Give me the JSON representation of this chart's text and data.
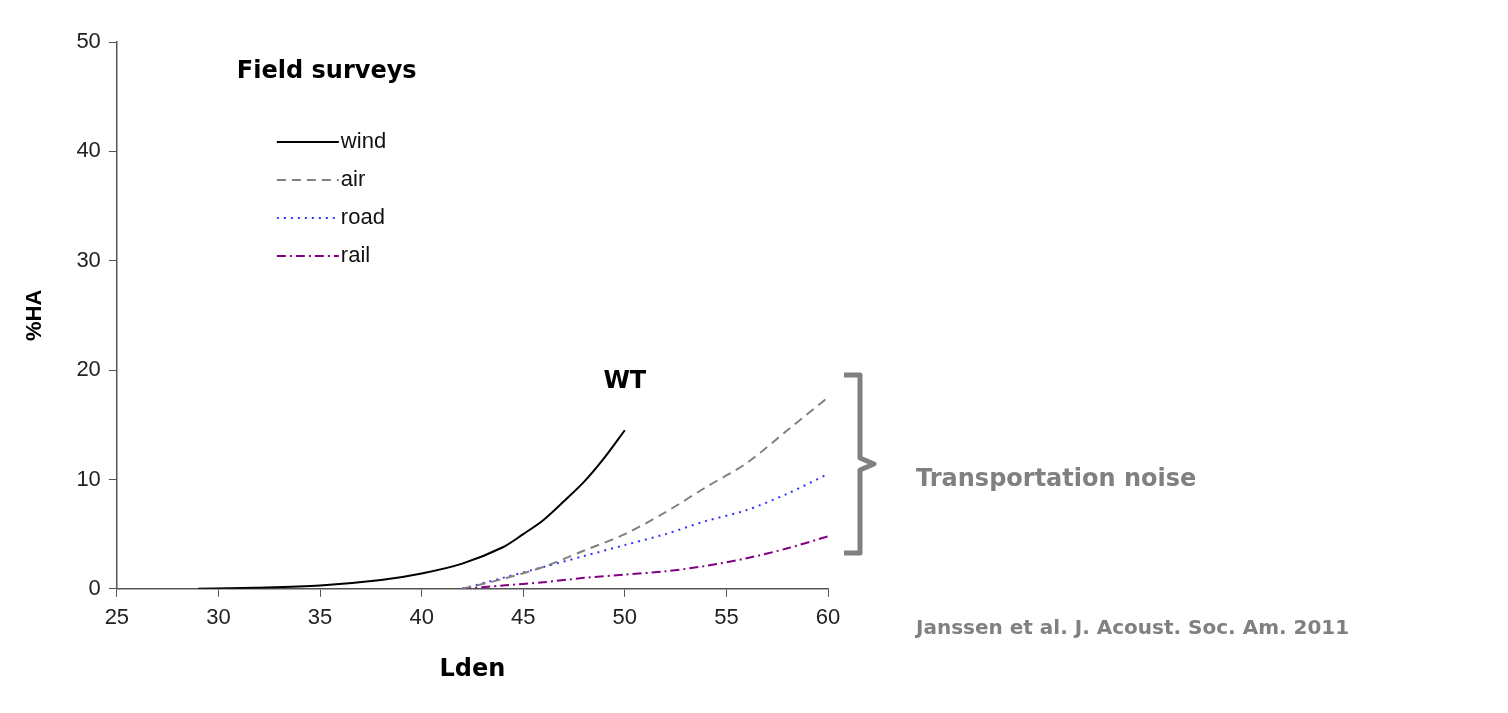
{
  "chart_data": {
    "type": "line",
    "xlabel": "Lden",
    "ylabel": "%HA",
    "xlim": [
      25,
      60
    ],
    "xticks": [
      25,
      30,
      35,
      40,
      45,
      50,
      55,
      60
    ],
    "ylim": [
      0,
      50
    ],
    "yticks": [
      0,
      10,
      20,
      30,
      40,
      50
    ],
    "grid": false,
    "legend": "top left",
    "marker": "none",
    "annotations": [
      "Field surveys",
      {
        "text": "WT",
        "x": 50,
        "y": 14.5
      },
      "Transportation noise",
      "Janssen et al. J. Acoust. Soc. Am. 2011"
    ],
    "series": [
      {
        "name": "wind",
        "color": "#000000",
        "line_style": "solid",
        "x": [
          29,
          32,
          35,
          38,
          40,
          42,
          44,
          45,
          46,
          47,
          48,
          49,
          50
        ],
        "values": [
          0,
          0.1,
          0.3,
          0.8,
          1.4,
          2.3,
          3.8,
          5,
          6.3,
          8,
          9.8,
          12,
          14.5
        ]
      },
      {
        "name": "air",
        "color": "#808080",
        "line_style": "dashed",
        "x": [
          42,
          44,
          46,
          48,
          50,
          52,
          54,
          56,
          58,
          60
        ],
        "values": [
          0,
          0.9,
          2,
          3.5,
          5,
          7,
          9.3,
          11.5,
          14.5,
          17.5
        ]
      },
      {
        "name": "road",
        "color": "#3333ff",
        "line_style": "dotted",
        "x": [
          42,
          44,
          46,
          48,
          50,
          52,
          54,
          56,
          58,
          60
        ],
        "values": [
          0,
          1,
          2,
          3,
          4,
          5,
          6.2,
          7.2,
          8.7,
          10.5
        ]
      },
      {
        "name": "rail",
        "color": "#800080",
        "line_style": "dashdot",
        "x": [
          42,
          44,
          46,
          48,
          50,
          52,
          54,
          56,
          58,
          60
        ],
        "values": [
          0,
          0.3,
          0.6,
          1,
          1.3,
          1.6,
          2.1,
          2.8,
          3.7,
          4.8
        ]
      }
    ]
  }
}
